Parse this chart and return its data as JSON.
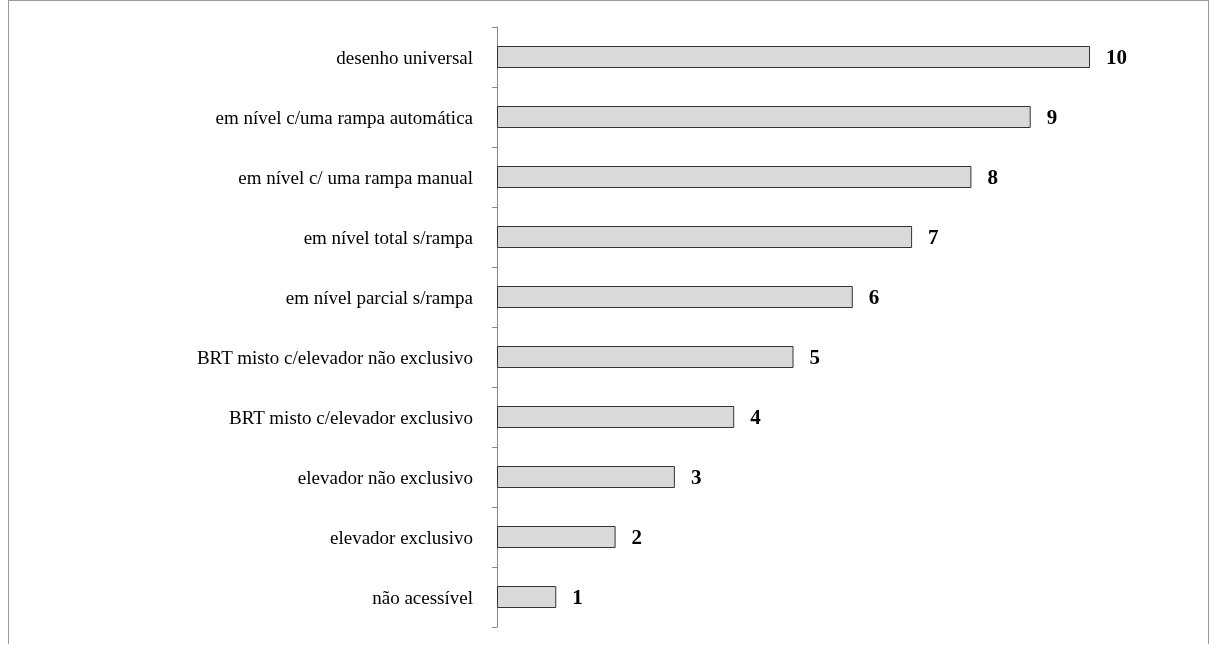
{
  "chart_data": {
    "type": "bar",
    "orientation": "horizontal",
    "categories": [
      "desenho universal",
      "em nível c/uma rampa automática",
      "em nível c/ uma rampa manual",
      "em nível total s/rampa",
      "em nível parcial s/rampa",
      "BRT misto c/elevador não exclusivo",
      "BRT misto c/elevador exclusivo",
      "elevador não exclusivo",
      "elevador exclusivo",
      "não acessível"
    ],
    "values": [
      10,
      9,
      8,
      7,
      6,
      5,
      4,
      3,
      2,
      1
    ],
    "color": "#d9d9d9",
    "data_labels": true,
    "tick_labels": "y"
  }
}
